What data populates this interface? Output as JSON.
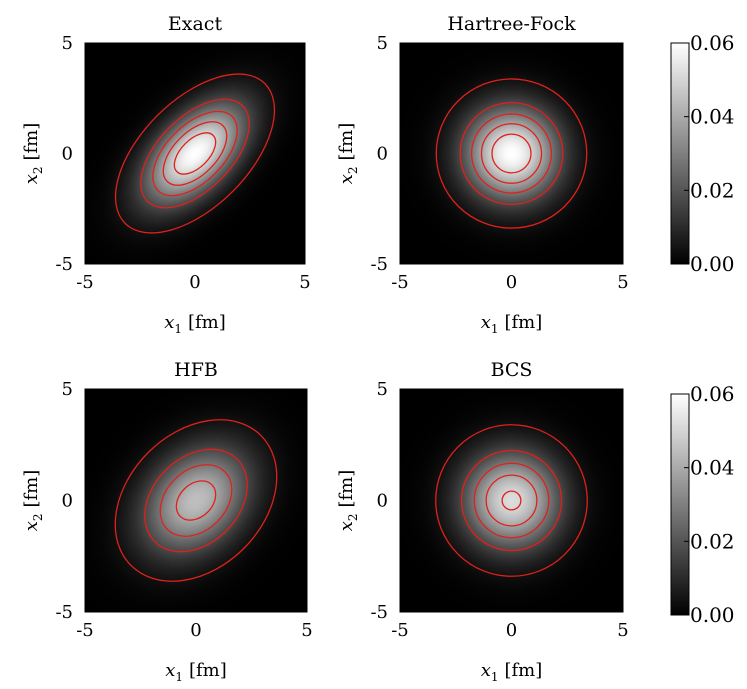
{
  "chart_data": [
    {
      "type": "heatmap",
      "title": "Exact",
      "xlabel": {
        "var": "x",
        "sub": "1",
        "unit": "[fm]"
      },
      "ylabel": {
        "var": "x",
        "sub": "2",
        "unit": "[fm]"
      },
      "xlim": [
        -5,
        5
      ],
      "ylim": [
        -5,
        5
      ],
      "x_ticks": [
        "-5",
        "0",
        "5"
      ],
      "y_ticks": [
        "-5",
        "0",
        "5"
      ],
      "density": {
        "peak": 0.06,
        "sx": 1.55,
        "sy": 1.55,
        "rho": 0.55
      },
      "contour_levels": [
        0.004,
        0.017,
        0.028,
        0.039,
        0.05
      ],
      "contour_color": "#e0201b"
    },
    {
      "type": "heatmap",
      "title": "Hartree-Fock",
      "xlabel": {
        "var": "x",
        "sub": "1",
        "unit": "[fm]"
      },
      "ylabel": {
        "var": "x",
        "sub": "2",
        "unit": "[fm]"
      },
      "xlim": [
        -5,
        5
      ],
      "ylim": [
        -5,
        5
      ],
      "x_ticks": [
        "-5",
        "0",
        "5"
      ],
      "y_ticks": [
        "-5",
        "0",
        "5"
      ],
      "density": {
        "peak": 0.06,
        "sx": 1.45,
        "sy": 1.45,
        "rho": 0.0
      },
      "contour_levels": [
        0.004,
        0.017,
        0.028,
        0.039,
        0.05
      ],
      "contour_color": "#e0201b"
    },
    {
      "type": "heatmap",
      "title": "HFB",
      "xlabel": {
        "var": "x",
        "sub": "1",
        "unit": "[fm]"
      },
      "ylabel": {
        "var": "x",
        "sub": "2",
        "unit": "[fm]"
      },
      "xlim": [
        -5,
        5
      ],
      "ylim": [
        -5,
        5
      ],
      "x_ticks": [
        "-5",
        "0",
        "5"
      ],
      "y_ticks": [
        "-5",
        "0",
        "5"
      ],
      "density": {
        "peak": 0.045,
        "sx": 1.65,
        "sy": 1.65,
        "rho": 0.3
      },
      "contour_levels": [
        0.004,
        0.017,
        0.028,
        0.039
      ],
      "contour_color": "#e0201b"
    },
    {
      "type": "heatmap",
      "title": "BCS",
      "xlabel": {
        "var": "x",
        "sub": "1",
        "unit": "[fm]"
      },
      "ylabel": {
        "var": "x",
        "sub": "2",
        "unit": "[fm]"
      },
      "xlim": [
        -5,
        5
      ],
      "ylim": [
        -5,
        5
      ],
      "x_ticks": [
        "-5",
        "0",
        "5"
      ],
      "y_ticks": [
        "-5",
        "0",
        "5"
      ],
      "density": {
        "peak": 0.052,
        "sx": 1.5,
        "sy": 1.5,
        "rho": 0.0
      },
      "contour_levels": [
        0.004,
        0.017,
        0.028,
        0.039,
        0.05
      ],
      "contour_color": "#e0201b"
    }
  ],
  "colorbars": [
    {
      "min": 0.0,
      "max": 0.06,
      "ticks": [
        "0.00",
        "0.02",
        "0.04",
        "0.06"
      ],
      "colormap": "gray"
    },
    {
      "min": 0.0,
      "max": 0.06,
      "ticks": [
        "0.00",
        "0.02",
        "0.04",
        "0.06"
      ],
      "colormap": "gray"
    }
  ]
}
